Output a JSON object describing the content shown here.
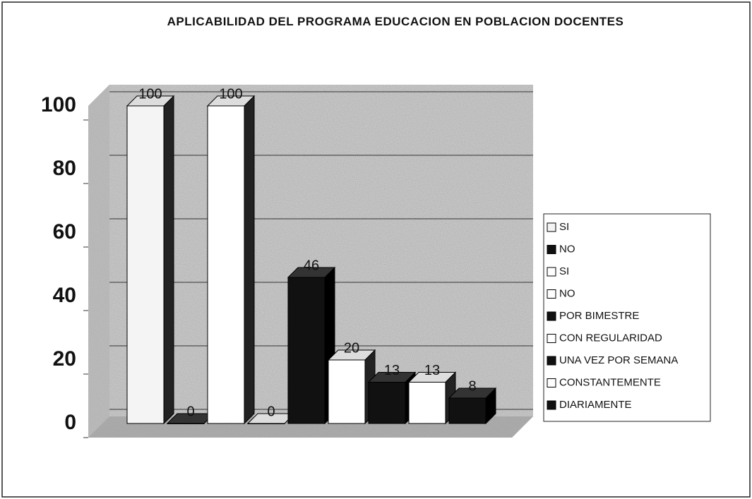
{
  "chart_data": {
    "type": "bar3d",
    "title": "APLICABILIDAD DEL PROGRAMA EDUCACION EN POBLACION DOCENTES",
    "ylim": [
      0,
      100
    ],
    "yticks": [
      0,
      20,
      40,
      60,
      80,
      100
    ],
    "grid": true,
    "legend": "right",
    "series": [
      {
        "name": "SI",
        "color": "#f4f4f4",
        "values": [
          100
        ]
      },
      {
        "name": "NO",
        "color": "#111111",
        "values": [
          0
        ]
      },
      {
        "name": "SI",
        "color": "#ffffff",
        "values": [
          100
        ]
      },
      {
        "name": "NO",
        "color": "#ffffff",
        "values": [
          0
        ]
      },
      {
        "name": "POR BIMESTRE",
        "color": "#111111",
        "values": [
          46
        ]
      },
      {
        "name": "CON REGULARIDAD",
        "color": "#ffffff",
        "values": [
          20
        ]
      },
      {
        "name": "UNA VEZ POR SEMANA",
        "color": "#111111",
        "values": [
          13
        ]
      },
      {
        "name": "CONSTANTEMENTE",
        "color": "#ffffff",
        "values": [
          13
        ]
      },
      {
        "name": "DIARIAMENTE",
        "color": "#111111",
        "values": [
          8
        ]
      }
    ]
  }
}
